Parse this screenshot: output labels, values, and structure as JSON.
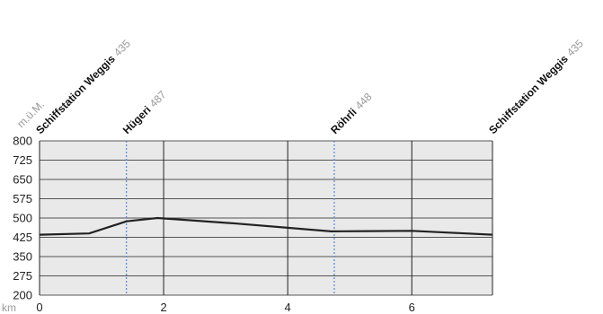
{
  "chart_data": {
    "type": "line",
    "y_unit": "m.ü.M.",
    "x_unit": "km",
    "xlim": [
      0,
      7.3
    ],
    "ylim": [
      200,
      800
    ],
    "y_ticks": [
      200,
      275,
      350,
      425,
      500,
      575,
      650,
      725,
      800
    ],
    "x_ticks": [
      0,
      2,
      4,
      6
    ],
    "grid": true,
    "colors": {
      "plot_background": "#e9e9e9",
      "line": "#222222",
      "waypoint_marker": "#5b8fd6"
    },
    "series": [
      {
        "x": [
          0,
          0.8,
          1.4,
          1.9,
          2.5,
          3.2,
          4.0,
          4.7,
          5.3,
          6.0,
          6.6,
          7.3
        ],
        "y": [
          435,
          440,
          487,
          500,
          490,
          478,
          462,
          448,
          449,
          450,
          443,
          435
        ]
      }
    ],
    "waypoints": [
      {
        "km": 0,
        "name": "Schiffstation Weggis",
        "elevation": "435",
        "marker": false
      },
      {
        "km": 1.4,
        "name": "Hügeri",
        "elevation": "487",
        "marker": true
      },
      {
        "km": 4.75,
        "name": "Röhrli",
        "elevation": "448",
        "marker": true
      },
      {
        "km": 7.3,
        "name": "Schiffstation Weggis",
        "elevation": "435",
        "marker": false
      }
    ]
  }
}
